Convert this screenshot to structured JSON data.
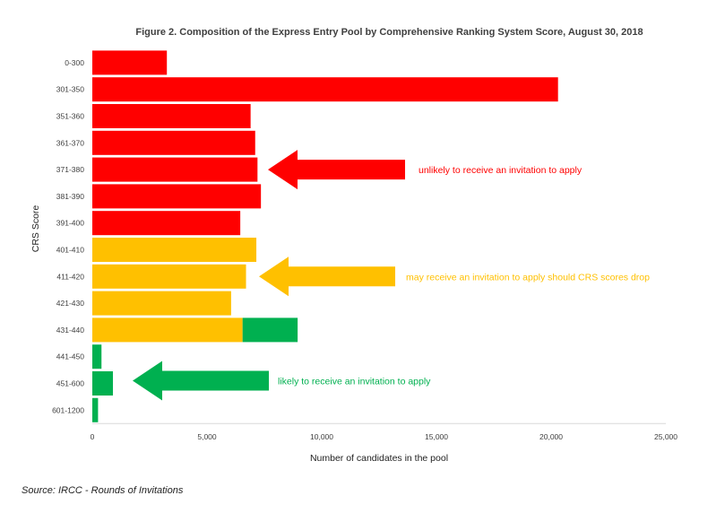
{
  "chart_data": {
    "type": "bar",
    "orientation": "horizontal",
    "stacked": true,
    "title": "Figure 2. Composition of the Express Entry Pool by Comprehensive Ranking System Score, August 30, 2018",
    "xlabel": "Number of candidates in the pool",
    "ylabel": "CRS Score",
    "xlim": [
      0,
      25000
    ],
    "xticks": [
      "0",
      "5,000",
      "10,000",
      "15,000",
      "20,000",
      "25,000"
    ],
    "grid": false,
    "categories": [
      "0-300",
      "301-350",
      "351-360",
      "361-370",
      "371-380",
      "381-390",
      "391-400",
      "401-410",
      "411-420",
      "421-430",
      "431-440",
      "441-450",
      "451-600",
      "601-1200"
    ],
    "series": [
      {
        "color": "#ff0000",
        "values": [
          3250,
          20300,
          6900,
          7100,
          7200,
          7350,
          6450,
          0,
          0,
          0,
          0,
          0,
          0,
          0
        ]
      },
      {
        "color": "#ffc000",
        "values": [
          0,
          0,
          0,
          0,
          0,
          0,
          0,
          7150,
          6700,
          6050,
          6550,
          0,
          0,
          0
        ]
      },
      {
        "color": "#00b050",
        "values": [
          0,
          0,
          0,
          0,
          0,
          0,
          0,
          0,
          0,
          0,
          2400,
          400,
          900,
          250
        ]
      }
    ],
    "annotations": [
      {
        "text": "unlikely to receive an invitation to apply",
        "color": "#ff0000",
        "points_to": "371-380"
      },
      {
        "text": "may receive an invitation to apply should CRS scores drop",
        "color": "#ffc000",
        "points_to": "411-420"
      },
      {
        "text": "likely to receive an invitation to apply",
        "color": "#00b050",
        "points_to": "451-600"
      }
    ]
  },
  "source": "Source: IRCC - Rounds of Invitations"
}
